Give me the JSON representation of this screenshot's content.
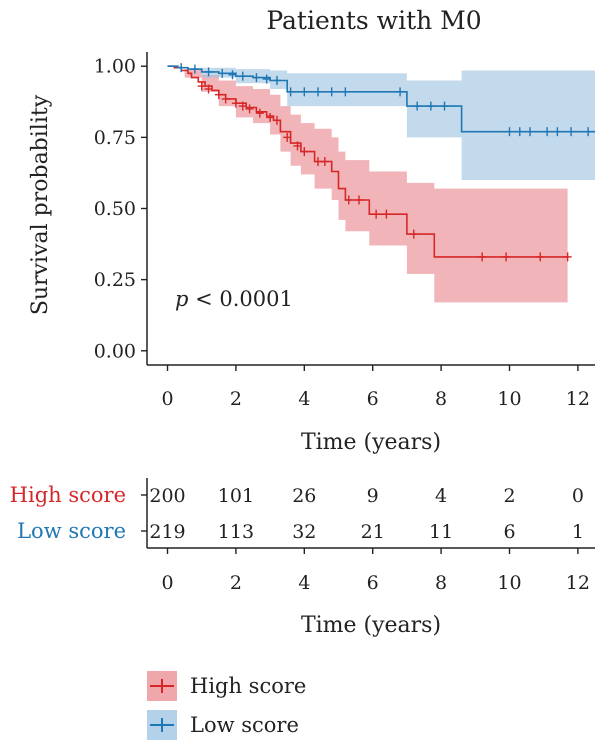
{
  "chart_data": {
    "type": "line",
    "title": "Patients with M0",
    "xlabel": "Time (years)",
    "ylabel": "Survival probability",
    "xlim": [
      -0.6,
      12.5
    ],
    "ylim": [
      -0.05,
      1.05
    ],
    "x_ticks": [
      "0",
      "2",
      "4",
      "6",
      "8",
      "10",
      "12"
    ],
    "y_ticks": [
      "0.00",
      "0.25",
      "0.50",
      "0.75",
      "1.00"
    ],
    "annotation": {
      "italic": "p",
      "text": " < 0.0001"
    },
    "legend_position": "bottom",
    "series": [
      {
        "name": "High score",
        "color": "#d62728",
        "band_color": "#e8868c",
        "steps": [
          [
            0,
            1.0
          ],
          [
            0.2,
            0.995
          ],
          [
            0.4,
            0.985
          ],
          [
            0.6,
            0.975
          ],
          [
            0.7,
            0.96
          ],
          [
            0.9,
            0.945
          ],
          [
            1.1,
            0.93
          ],
          [
            1.3,
            0.915
          ],
          [
            1.5,
            0.9
          ],
          [
            1.7,
            0.885
          ],
          [
            2.0,
            0.87
          ],
          [
            2.3,
            0.855
          ],
          [
            2.6,
            0.84
          ],
          [
            2.9,
            0.825
          ],
          [
            3.1,
            0.81
          ],
          [
            3.3,
            0.77
          ],
          [
            3.6,
            0.73
          ],
          [
            3.9,
            0.7
          ],
          [
            4.3,
            0.665
          ],
          [
            4.7,
            0.665
          ],
          [
            4.8,
            0.63
          ],
          [
            5.0,
            0.57
          ],
          [
            5.2,
            0.53
          ],
          [
            5.5,
            0.53
          ],
          [
            5.9,
            0.48
          ],
          [
            6.5,
            0.48
          ],
          [
            7.0,
            0.41
          ],
          [
            7.8,
            0.33
          ],
          [
            11.7,
            0.33
          ]
        ],
        "upper": [
          [
            0,
            1.0
          ],
          [
            0.5,
            0.99
          ],
          [
            1.0,
            0.97
          ],
          [
            1.5,
            0.95
          ],
          [
            2.0,
            0.93
          ],
          [
            2.5,
            0.92
          ],
          [
            3.0,
            0.9
          ],
          [
            3.3,
            0.86
          ],
          [
            3.6,
            0.83
          ],
          [
            3.9,
            0.8
          ],
          [
            4.3,
            0.78
          ],
          [
            4.8,
            0.75
          ],
          [
            5.0,
            0.7
          ],
          [
            5.2,
            0.67
          ],
          [
            5.9,
            0.63
          ],
          [
            7.0,
            0.59
          ],
          [
            7.8,
            0.57
          ],
          [
            11.7,
            0.57
          ]
        ],
        "lower": [
          [
            0,
            1.0
          ],
          [
            0.5,
            0.96
          ],
          [
            1.0,
            0.91
          ],
          [
            1.5,
            0.86
          ],
          [
            2.0,
            0.82
          ],
          [
            2.5,
            0.8
          ],
          [
            3.0,
            0.76
          ],
          [
            3.3,
            0.7
          ],
          [
            3.6,
            0.65
          ],
          [
            3.9,
            0.62
          ],
          [
            4.3,
            0.57
          ],
          [
            4.8,
            0.53
          ],
          [
            5.0,
            0.46
          ],
          [
            5.2,
            0.42
          ],
          [
            5.9,
            0.37
          ],
          [
            7.0,
            0.27
          ],
          [
            7.8,
            0.17
          ],
          [
            11.7,
            0.17
          ]
        ],
        "censored": [
          [
            1.0,
            0.93
          ],
          [
            1.2,
            0.92
          ],
          [
            1.5,
            0.9
          ],
          [
            1.7,
            0.885
          ],
          [
            2.0,
            0.87
          ],
          [
            2.2,
            0.86
          ],
          [
            2.4,
            0.85
          ],
          [
            2.7,
            0.835
          ],
          [
            3.0,
            0.82
          ],
          [
            3.2,
            0.81
          ],
          [
            3.5,
            0.75
          ],
          [
            3.8,
            0.72
          ],
          [
            4.0,
            0.7
          ],
          [
            4.4,
            0.665
          ],
          [
            4.6,
            0.665
          ],
          [
            5.3,
            0.53
          ],
          [
            5.6,
            0.53
          ],
          [
            6.1,
            0.48
          ],
          [
            6.4,
            0.48
          ],
          [
            7.2,
            0.41
          ],
          [
            9.2,
            0.33
          ],
          [
            9.9,
            0.33
          ],
          [
            10.9,
            0.33
          ],
          [
            11.7,
            0.33
          ]
        ],
        "at_risk_label": "High score",
        "at_risk": [
          "200",
          "101",
          "26",
          "9",
          "4",
          "2",
          "0"
        ]
      },
      {
        "name": "Low score",
        "color": "#1f77b4",
        "band_color": "#9ec4e2",
        "steps": [
          [
            0,
            1.0
          ],
          [
            0.3,
            0.995
          ],
          [
            0.6,
            0.99
          ],
          [
            1.0,
            0.98
          ],
          [
            1.5,
            0.975
          ],
          [
            2.0,
            0.965
          ],
          [
            2.5,
            0.96
          ],
          [
            3.0,
            0.95
          ],
          [
            3.5,
            0.91
          ],
          [
            6.7,
            0.91
          ],
          [
            7.0,
            0.86
          ],
          [
            8.5,
            0.86
          ],
          [
            8.6,
            0.77
          ],
          [
            12.5,
            0.77
          ]
        ],
        "upper": [
          [
            0,
            1.0
          ],
          [
            1.0,
            0.995
          ],
          [
            2.0,
            0.99
          ],
          [
            3.0,
            0.985
          ],
          [
            3.5,
            0.975
          ],
          [
            6.7,
            0.975
          ],
          [
            7.0,
            0.95
          ],
          [
            8.5,
            0.95
          ],
          [
            8.6,
            0.985
          ],
          [
            12.5,
            0.985
          ]
        ],
        "lower": [
          [
            0,
            1.0
          ],
          [
            1.0,
            0.96
          ],
          [
            2.0,
            0.94
          ],
          [
            3.0,
            0.92
          ],
          [
            3.5,
            0.86
          ],
          [
            6.7,
            0.86
          ],
          [
            7.0,
            0.75
          ],
          [
            8.5,
            0.75
          ],
          [
            8.6,
            0.6
          ],
          [
            12.5,
            0.6
          ]
        ],
        "censored": [
          [
            0.4,
            0.995
          ],
          [
            0.8,
            0.99
          ],
          [
            1.2,
            0.98
          ],
          [
            1.6,
            0.975
          ],
          [
            1.9,
            0.97
          ],
          [
            2.2,
            0.965
          ],
          [
            2.6,
            0.96
          ],
          [
            2.9,
            0.955
          ],
          [
            3.2,
            0.95
          ],
          [
            3.6,
            0.91
          ],
          [
            4.0,
            0.91
          ],
          [
            4.4,
            0.91
          ],
          [
            4.8,
            0.91
          ],
          [
            5.2,
            0.91
          ],
          [
            6.8,
            0.91
          ],
          [
            7.3,
            0.86
          ],
          [
            7.7,
            0.86
          ],
          [
            8.1,
            0.86
          ],
          [
            10.0,
            0.77
          ],
          [
            10.3,
            0.77
          ],
          [
            10.6,
            0.77
          ],
          [
            11.1,
            0.77
          ],
          [
            11.4,
            0.77
          ],
          [
            11.8,
            0.77
          ],
          [
            12.3,
            0.77
          ]
        ],
        "at_risk_label": "Low score",
        "at_risk": [
          "219",
          "113",
          "32",
          "21",
          "11",
          "6",
          "1"
        ]
      }
    ],
    "risk_table_xlabel": "Time (years)"
  },
  "legend": [
    {
      "label": "High score"
    },
    {
      "label": "Low score"
    }
  ]
}
